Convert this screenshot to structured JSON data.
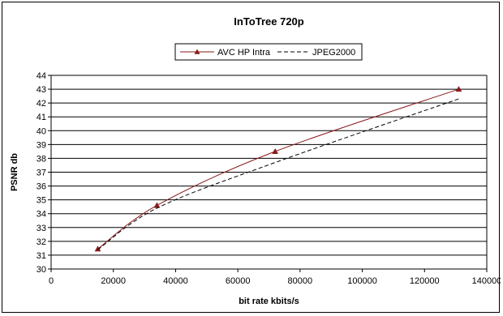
{
  "chart_data": {
    "type": "line",
    "title": "InToTree 720p",
    "xlabel": "bit rate kbits/s",
    "ylabel": "PSNR db",
    "xlim": [
      0,
      140000
    ],
    "ylim": [
      30,
      44
    ],
    "x_ticks": [
      0,
      20000,
      40000,
      60000,
      80000,
      100000,
      120000,
      140000
    ],
    "y_ticks": [
      30,
      31,
      32,
      33,
      34,
      35,
      36,
      37,
      38,
      39,
      40,
      41,
      42,
      43,
      44
    ],
    "grid": "horizontal",
    "legend": "top-center",
    "series": [
      {
        "name": "AVC HP Intra",
        "color": "#8b1a1a",
        "style": "solid",
        "marker": "triangle",
        "x": [
          15000,
          34000,
          72000,
          131000
        ],
        "y": [
          31.45,
          34.6,
          38.5,
          43.0
        ]
      },
      {
        "name": "JPEG2000",
        "color": "#000000",
        "style": "dashed",
        "marker": "none",
        "x": [
          15000,
          34000,
          72000,
          131000
        ],
        "y": [
          31.4,
          34.4,
          37.7,
          42.3
        ]
      }
    ]
  }
}
